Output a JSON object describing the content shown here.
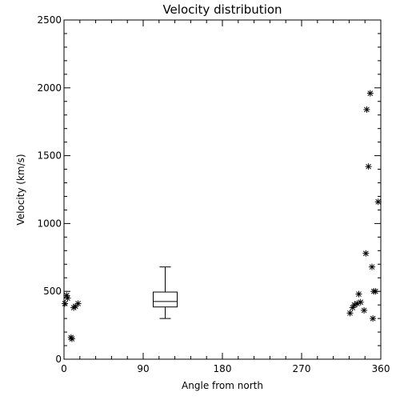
{
  "chart_data": {
    "type": "scatter",
    "title": "Velocity distribution",
    "xlabel": "Angle from north",
    "ylabel": "Velocity (km/s)",
    "xlim": [
      0,
      360
    ],
    "ylim": [
      0,
      2500
    ],
    "xticks": [
      0,
      90,
      180,
      270,
      360
    ],
    "xtick_labels": [
      "0",
      "90",
      "180",
      "270",
      "360"
    ],
    "yticks": [
      0,
      500,
      1000,
      1500,
      2000,
      2500
    ],
    "ytick_labels": [
      "0",
      "500",
      "1000",
      "1500",
      "2000",
      "2500"
    ],
    "grid": false,
    "marker": "asterisk",
    "color": "#000000",
    "points": [
      {
        "x": 1,
        "y": 410
      },
      {
        "x": 3,
        "y": 470
      },
      {
        "x": 4,
        "y": 450
      },
      {
        "x": 8,
        "y": 160
      },
      {
        "x": 9,
        "y": 150
      },
      {
        "x": 11,
        "y": 380
      },
      {
        "x": 13,
        "y": 390
      },
      {
        "x": 16,
        "y": 410
      },
      {
        "x": 325,
        "y": 340
      },
      {
        "x": 328,
        "y": 380
      },
      {
        "x": 330,
        "y": 400
      },
      {
        "x": 333,
        "y": 410
      },
      {
        "x": 335,
        "y": 480
      },
      {
        "x": 337,
        "y": 420
      },
      {
        "x": 341,
        "y": 360
      },
      {
        "x": 343,
        "y": 780
      },
      {
        "x": 344,
        "y": 1840
      },
      {
        "x": 346,
        "y": 1420
      },
      {
        "x": 348,
        "y": 1960
      },
      {
        "x": 350,
        "y": 680
      },
      {
        "x": 351,
        "y": 300
      },
      {
        "x": 352,
        "y": 500
      },
      {
        "x": 354,
        "y": 500
      },
      {
        "x": 357,
        "y": 1160
      }
    ],
    "boxplot": {
      "position": 115,
      "whisker_low": 300,
      "q1": 385,
      "median": 425,
      "q3": 495,
      "whisker_high": 680
    }
  }
}
